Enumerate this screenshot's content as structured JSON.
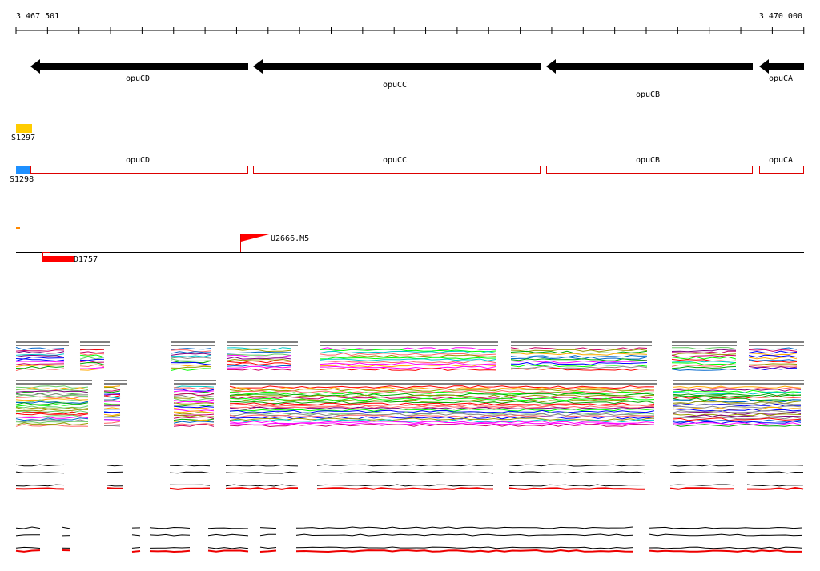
{
  "ruler": {
    "start_label": "3 467 501",
    "end_label": "3 470 000"
  },
  "genes": [
    {
      "label": "opuCD"
    },
    {
      "label": "opuCC"
    },
    {
      "label": "opuCB"
    },
    {
      "label": "opuCA"
    }
  ],
  "tracks": {
    "yellow_label": "S1297",
    "blue_label": "S1298"
  },
  "transcripts": [
    {
      "label": "opuCD"
    },
    {
      "label": "opuCC"
    },
    {
      "label": "opuCB"
    },
    {
      "label": "opuCA"
    }
  ],
  "features": {
    "flag_label": "U2666.M5",
    "bar_label": "D1757"
  }
}
